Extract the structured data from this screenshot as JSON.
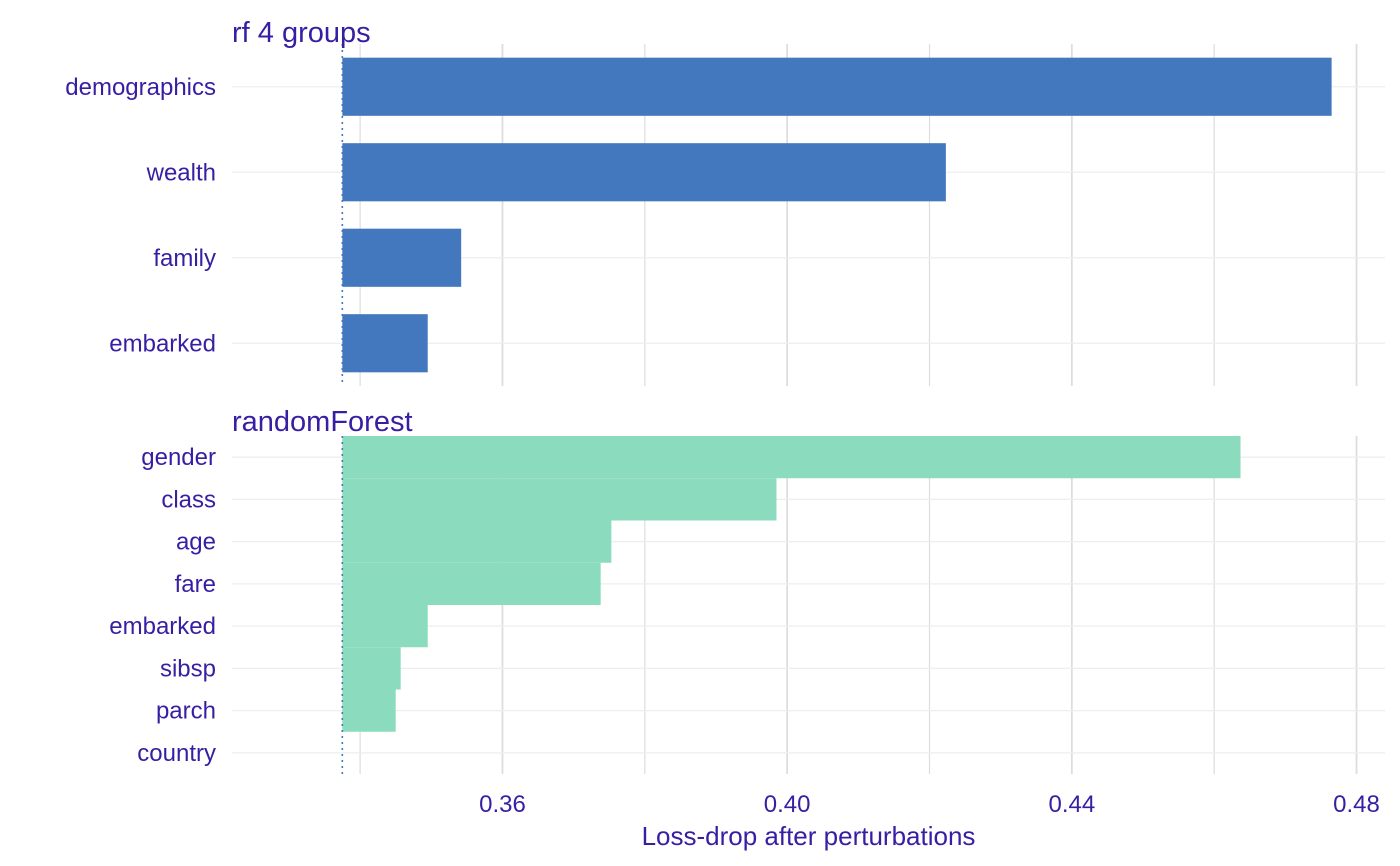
{
  "chart_data": {
    "type": "bar",
    "orientation": "horizontal",
    "xlabel": "Loss-drop after perturbations",
    "xlim": [
      0.322,
      0.484
    ],
    "x_ticks": [
      "0.36",
      "0.40",
      "0.44",
      "0.48"
    ],
    "x_tick_values": [
      0.36,
      0.4,
      0.44,
      0.48
    ],
    "x_minor_values": [
      0.34,
      0.38,
      0.42,
      0.46
    ],
    "baseline": 0.3375,
    "grid": true,
    "panels": [
      {
        "title": "rf 4 groups",
        "color": "#4378bf",
        "categories": [
          "demographics",
          "wealth",
          "family",
          "embarked"
        ],
        "values": [
          0.4765,
          0.4223,
          0.3542,
          0.3495
        ]
      },
      {
        "title": "randomForest",
        "color": "#8bdcbe",
        "categories": [
          "gender",
          "class",
          "age",
          "fare",
          "embarked",
          "sibsp",
          "parch",
          "country"
        ],
        "values": [
          0.4637,
          0.3985,
          0.3753,
          0.3738,
          0.3495,
          0.3457,
          0.345,
          0.3375
        ]
      }
    ]
  },
  "colors": {
    "text": "#371ea3",
    "grid": "#dddddd",
    "baseline": "#4378bf"
  }
}
